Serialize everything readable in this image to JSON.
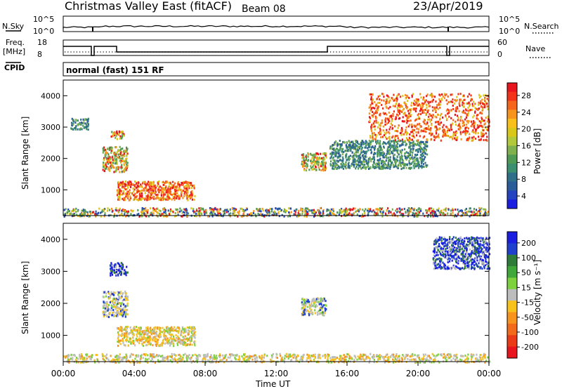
{
  "header": {
    "title": "Christmas Valley East (fitACF)",
    "beam": "Beam 08",
    "date": "23/Apr/2019"
  },
  "sky_panel": {
    "left_label": "N.Sky",
    "right_label": "N.Search",
    "ticks_left": [
      "10^5",
      "10^0"
    ],
    "ticks_right": [
      "10^5",
      "10^0"
    ]
  },
  "freq_panel": {
    "left_label_1": "Freq.",
    "left_label_2": "[MHz]",
    "right_label": "Nave",
    "ticks_left": [
      "18",
      "8"
    ],
    "ticks_right": [
      "60",
      "0"
    ]
  },
  "cpid": {
    "label": "CPID",
    "value": "normal (fast) 151 RF"
  },
  "chart_data": [
    {
      "type": "heatmap",
      "name": "power",
      "ylabel": "Slant Range [km]",
      "yticks": [
        "1000",
        "2000",
        "3000",
        "4000"
      ],
      "ylim": [
        180,
        4500
      ],
      "xlim_hours": [
        0,
        24
      ],
      "colorbar": {
        "label": "Power [dB]",
        "ticks": [
          "28",
          "24",
          "20",
          "16",
          "12",
          "8",
          "4"
        ],
        "colors": [
          "#e8141e",
          "#f2331a",
          "#f5661c",
          "#f7941d",
          "#f9c01b",
          "#d9c71a",
          "#b1c93a",
          "#7fb14e",
          "#4f9a55",
          "#3b8e70",
          "#2f6f8a",
          "#2b5c9a",
          "#2343c0",
          "#1a1ee0"
        ]
      },
      "echo_regions": [
        {
          "t0": 3.0,
          "t1": 7.4,
          "r0": 700,
          "r1": 1300,
          "level": "high"
        },
        {
          "t0": 2.2,
          "t1": 3.6,
          "r0": 1600,
          "r1": 2400,
          "level": "mid"
        },
        {
          "t0": 0.4,
          "t1": 1.4,
          "r0": 2950,
          "r1": 3300,
          "level": "low"
        },
        {
          "t0": 2.6,
          "t1": 3.4,
          "r0": 2650,
          "r1": 2900,
          "level": "mid"
        },
        {
          "t0": 13.4,
          "t1": 14.8,
          "r0": 1650,
          "r1": 2200,
          "level": "mid"
        },
        {
          "t0": 15.0,
          "t1": 20.5,
          "r0": 1700,
          "r1": 2600,
          "level": "low"
        },
        {
          "t0": 17.2,
          "t1": 24.0,
          "r0": 2600,
          "r1": 4100,
          "level": "high"
        },
        {
          "t0": 0.0,
          "t1": 24.0,
          "r0": 180,
          "r1": 450,
          "level": "ground"
        }
      ]
    },
    {
      "type": "heatmap",
      "name": "velocity",
      "ylabel": "Slant Range [km]",
      "yticks": [
        "1000",
        "2000",
        "3000",
        "4000"
      ],
      "ylim": [
        180,
        4500
      ],
      "xlim_hours": [
        0,
        24
      ],
      "colorbar": {
        "label": "Velocity [m s⁻¹]",
        "ticks": [
          "200",
          "100",
          "50",
          "15",
          "-15",
          "-50",
          "-100",
          "-200"
        ],
        "colors": [
          "#1a1ee0",
          "#1f3fcf",
          "#2f7b3a",
          "#40a83a",
          "#7dd13c",
          "#bdbdbd",
          "#f7c21b",
          "#f7941d",
          "#f26a1a",
          "#ea3b16",
          "#e8141e"
        ]
      },
      "echo_regions": [
        {
          "t0": 3.0,
          "t1": 7.4,
          "r0": 700,
          "r1": 1300,
          "level": "neg"
        },
        {
          "t0": 2.2,
          "t1": 3.6,
          "r0": 1600,
          "r1": 2400,
          "level": "zero"
        },
        {
          "t0": 2.6,
          "t1": 3.6,
          "r0": 2900,
          "r1": 3300,
          "level": "pos"
        },
        {
          "t0": 13.4,
          "t1": 14.8,
          "r0": 1650,
          "r1": 2200,
          "level": "zero"
        },
        {
          "t0": 20.8,
          "t1": 24.0,
          "r0": 3100,
          "r1": 4100,
          "level": "pos"
        },
        {
          "t0": 0.0,
          "t1": 24.0,
          "r0": 180,
          "r1": 450,
          "level": "ground"
        }
      ]
    }
  ],
  "x_axis": {
    "label": "Time UT",
    "ticks": [
      "00:00",
      "04:00",
      "08:00",
      "12:00",
      "16:00",
      "20:00",
      "00:00"
    ]
  }
}
